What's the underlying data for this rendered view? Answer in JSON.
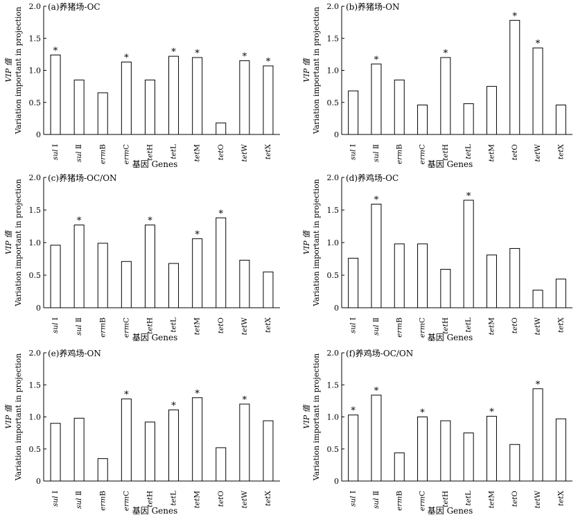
{
  "shared": {
    "ylabel_main": "VIP 值",
    "ylabel_sub": "Variation important in projection",
    "xlabel": "基因 Genes",
    "categories": [
      {
        "pre": "sul",
        "post": " Ⅰ",
        "italic_pre": true
      },
      {
        "pre": "sul",
        "post": " Ⅱ",
        "italic_pre": true
      },
      {
        "pre": "erm",
        "post": "B",
        "italic_pre": true
      },
      {
        "pre": "erm",
        "post": "C",
        "italic_pre": true
      },
      {
        "pre": "tet",
        "post": "H",
        "italic_pre": true
      },
      {
        "pre": "tet",
        "post": "L",
        "italic_pre": true
      },
      {
        "pre": "tet",
        "post": "M",
        "italic_pre": true
      },
      {
        "pre": "tet",
        "post": "O",
        "italic_pre": true
      },
      {
        "pre": "tet",
        "post": "W",
        "italic_pre": true
      },
      {
        "pre": "tet",
        "post": "X",
        "italic_pre": true
      }
    ],
    "yticks": [
      "0",
      "0.5",
      "1.0",
      "1.5",
      "2.0"
    ],
    "star_symbol": "*"
  },
  "chart_data": [
    {
      "type": "bar",
      "title": "(a)养猪场-OC",
      "categories": [
        "sul Ⅰ",
        "sul Ⅱ",
        "ermB",
        "ermC",
        "tetH",
        "tetL",
        "tetM",
        "tetO",
        "tetW",
        "tetX"
      ],
      "values": [
        1.24,
        0.85,
        0.65,
        1.13,
        0.85,
        1.22,
        1.2,
        0.18,
        1.15,
        1.07
      ],
      "significant": [
        true,
        false,
        false,
        true,
        false,
        true,
        true,
        false,
        true,
        true
      ],
      "xlabel": "基因 Genes",
      "ylabel": "VIP 值 Variation important in projection",
      "ylim": [
        0,
        2.0
      ]
    },
    {
      "type": "bar",
      "title": "(b)养猪场-ON",
      "categories": [
        "sul Ⅰ",
        "sul Ⅱ",
        "ermB",
        "ermC",
        "tetH",
        "tetL",
        "tetM",
        "tetO",
        "tetW",
        "tetX"
      ],
      "values": [
        0.68,
        1.1,
        0.85,
        0.46,
        1.2,
        0.48,
        0.75,
        1.78,
        1.35,
        0.46
      ],
      "significant": [
        false,
        true,
        false,
        false,
        true,
        false,
        false,
        true,
        true,
        false
      ],
      "xlabel": "基因 Genes",
      "ylabel": "VIP 值 Variation important in projection",
      "ylim": [
        0,
        2.0
      ]
    },
    {
      "type": "bar",
      "title": "(c)养猪场-OC/ON",
      "categories": [
        "sul Ⅰ",
        "sul Ⅱ",
        "ermB",
        "ermC",
        "tetH",
        "tetL",
        "tetM",
        "tetO",
        "tetW",
        "tetX"
      ],
      "values": [
        0.96,
        1.27,
        0.99,
        0.71,
        1.27,
        0.68,
        1.06,
        1.38,
        0.73,
        0.55
      ],
      "significant": [
        false,
        true,
        false,
        false,
        true,
        false,
        true,
        true,
        false,
        false
      ],
      "xlabel": "基因 Genes",
      "ylabel": "VIP 值 Variation important in projection",
      "ylim": [
        0,
        2.0
      ]
    },
    {
      "type": "bar",
      "title": "(d)养鸡场-OC",
      "categories": [
        "sul Ⅰ",
        "sul Ⅱ",
        "ermB",
        "ermC",
        "tetH",
        "tetL",
        "tetM",
        "tetO",
        "tetW",
        "tetX"
      ],
      "values": [
        0.76,
        1.59,
        0.98,
        0.98,
        0.59,
        1.65,
        0.81,
        0.91,
        0.27,
        0.44
      ],
      "significant": [
        false,
        true,
        false,
        false,
        false,
        true,
        false,
        false,
        false,
        false
      ],
      "xlabel": "基因 Genes",
      "ylabel": "VIP 值 Variation important in projection",
      "ylim": [
        0,
        2.0
      ]
    },
    {
      "type": "bar",
      "title": "(e)养鸡场-ON",
      "categories": [
        "sul Ⅰ",
        "sul Ⅱ",
        "ermB",
        "ermC",
        "tetH",
        "tetL",
        "tetM",
        "tetO",
        "tetW",
        "tetX"
      ],
      "values": [
        0.9,
        0.98,
        0.35,
        1.28,
        0.92,
        1.11,
        1.3,
        0.52,
        1.2,
        0.94
      ],
      "significant": [
        false,
        false,
        false,
        true,
        false,
        true,
        true,
        false,
        true,
        false
      ],
      "xlabel": "基因 Genes",
      "ylabel": "VIP 值 Variation important in projection",
      "ylim": [
        0,
        2.0
      ]
    },
    {
      "type": "bar",
      "title": "(f)养鸡场-OC/ON",
      "categories": [
        "sul Ⅰ",
        "sul Ⅱ",
        "ermB",
        "ermC",
        "tetH",
        "tetL",
        "tetM",
        "tetO",
        "tetW",
        "tetX"
      ],
      "values": [
        1.03,
        1.34,
        0.44,
        1.0,
        0.94,
        0.75,
        1.01,
        0.57,
        1.44,
        0.97
      ],
      "significant": [
        true,
        true,
        false,
        true,
        false,
        false,
        true,
        false,
        true,
        false
      ],
      "xlabel": "基因 Genes",
      "ylabel": "VIP 值 Variation important in projection",
      "ylim": [
        0,
        2.0
      ]
    }
  ]
}
